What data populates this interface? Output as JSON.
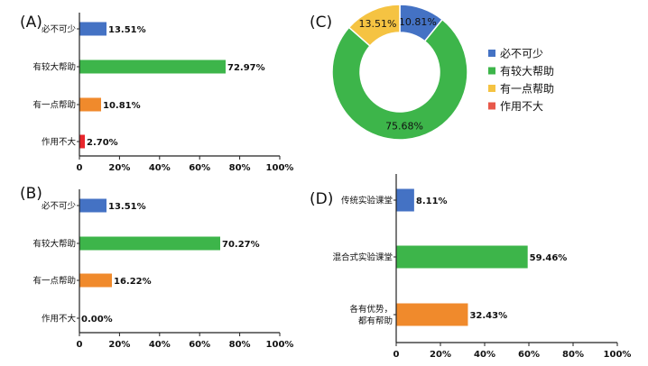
{
  "chart_data": [
    {
      "panel": "(A)",
      "type": "bar",
      "orientation": "horizontal",
      "categories": [
        "必不可少",
        "有较大帮助",
        "有一点帮助",
        "作用不大"
      ],
      "values": [
        13.51,
        72.97,
        10.81,
        2.7
      ],
      "value_labels": [
        "13.51%",
        "72.97%",
        "10.81%",
        "2.70%"
      ],
      "colors": [
        "#4472C4",
        "#3DB54A",
        "#F08A2C",
        "#E8262B"
      ],
      "xlim": [
        0,
        100
      ],
      "xticks": [
        "0",
        "20%",
        "40%",
        "60%",
        "80%",
        "100%"
      ]
    },
    {
      "panel": "(B)",
      "type": "bar",
      "orientation": "horizontal",
      "categories": [
        "必不可少",
        "有较大帮助",
        "有一点帮助",
        "作用不大"
      ],
      "values": [
        13.51,
        70.27,
        16.22,
        0.0
      ],
      "value_labels": [
        "13.51%",
        "70.27%",
        "16.22%",
        "0.00%"
      ],
      "colors": [
        "#4472C4",
        "#3DB54A",
        "#F08A2C",
        "#E8262B"
      ],
      "xlim": [
        0,
        100
      ],
      "xticks": [
        "0",
        "20%",
        "40%",
        "60%",
        "80%",
        "100%"
      ]
    },
    {
      "panel": "(C)",
      "type": "pie",
      "donut": true,
      "categories": [
        "必不可少",
        "有较大帮助",
        "有一点帮助",
        "作用不大"
      ],
      "values": [
        10.81,
        75.68,
        13.51,
        0
      ],
      "value_labels": [
        "10.81%",
        "75.68%",
        "13.51%",
        ""
      ],
      "colors": [
        "#4472C4",
        "#3DB54A",
        "#F5C342",
        "#E8584A"
      ],
      "legend": "right"
    },
    {
      "panel": "(D)",
      "type": "bar",
      "orientation": "horizontal",
      "categories": [
        [
          "传统实验课堂"
        ],
        [
          "混合式实验课堂"
        ],
        [
          "各有优势，",
          "都有帮助"
        ]
      ],
      "values": [
        8.11,
        59.46,
        32.43
      ],
      "value_labels": [
        "8.11%",
        "59.46%",
        "32.43%"
      ],
      "colors": [
        "#4472C4",
        "#3DB54A",
        "#F08A2C"
      ],
      "xlim": [
        0,
        100
      ],
      "xticks": [
        "0",
        "20%",
        "40%",
        "60%",
        "80%",
        "100%"
      ]
    }
  ]
}
